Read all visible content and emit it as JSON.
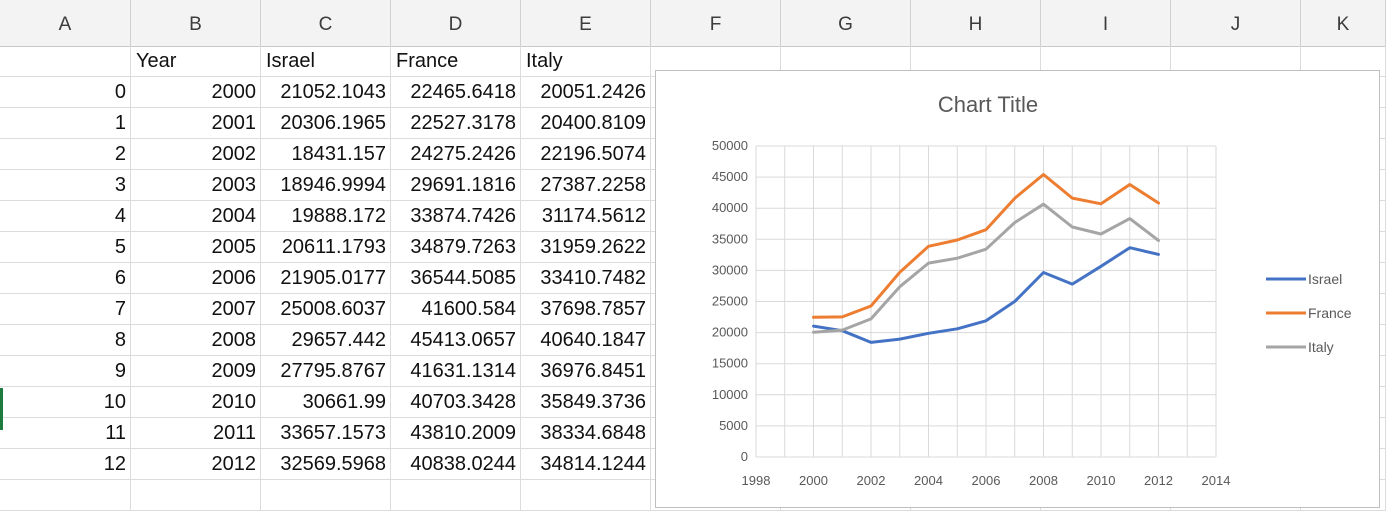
{
  "columns": [
    "A",
    "B",
    "C",
    "D",
    "E",
    "F",
    "G",
    "H",
    "I",
    "J",
    "K"
  ],
  "header_row": [
    "",
    "Year",
    "Israel",
    "France",
    "Italy"
  ],
  "rows": [
    [
      "0",
      "2000",
      "21052.1043",
      "22465.6418",
      "20051.2426"
    ],
    [
      "1",
      "2001",
      "20306.1965",
      "22527.3178",
      "20400.8109"
    ],
    [
      "2",
      "2002",
      "18431.157",
      "24275.2426",
      "22196.5074"
    ],
    [
      "3",
      "2003",
      "18946.9994",
      "29691.1816",
      "27387.2258"
    ],
    [
      "4",
      "2004",
      "19888.172",
      "33874.7426",
      "31174.5612"
    ],
    [
      "5",
      "2005",
      "20611.1793",
      "34879.7263",
      "31959.2622"
    ],
    [
      "6",
      "2006",
      "21905.0177",
      "36544.5085",
      "33410.7482"
    ],
    [
      "7",
      "2007",
      "25008.6037",
      "41600.584",
      "37698.7857"
    ],
    [
      "8",
      "2008",
      "29657.442",
      "45413.0657",
      "40640.1847"
    ],
    [
      "9",
      "2009",
      "27795.8767",
      "41631.1314",
      "36976.8451"
    ],
    [
      "10",
      "2010",
      "30661.99",
      "40703.3428",
      "35849.3736"
    ],
    [
      "11",
      "2011",
      "33657.1573",
      "43810.2009",
      "38334.6848"
    ],
    [
      "12",
      "2012",
      "32569.5968",
      "40838.0244",
      "34814.1244"
    ]
  ],
  "chart_data": {
    "type": "line",
    "title": "Chart Title",
    "x": [
      2000,
      2001,
      2002,
      2003,
      2004,
      2005,
      2006,
      2007,
      2008,
      2009,
      2010,
      2011,
      2012
    ],
    "xlim": [
      1998,
      2014
    ],
    "xticks": [
      "1998",
      "2000",
      "2002",
      "2004",
      "2006",
      "2008",
      "2010",
      "2012",
      "2014"
    ],
    "ylim": [
      0,
      50000
    ],
    "yticks": [
      "0",
      "5000",
      "10000",
      "15000",
      "20000",
      "25000",
      "30000",
      "35000",
      "40000",
      "45000",
      "50000"
    ],
    "grid": true,
    "legend_position": "right",
    "series": [
      {
        "name": "Israel",
        "color": "#4472c4",
        "values": [
          21052.1043,
          20306.1965,
          18431.157,
          18946.9994,
          19888.172,
          20611.1793,
          21905.0177,
          25008.6037,
          29657.442,
          27795.8767,
          30661.99,
          33657.1573,
          32569.5968
        ]
      },
      {
        "name": "France",
        "color": "#ed7d31",
        "values": [
          22465.6418,
          22527.3178,
          24275.2426,
          29691.1816,
          33874.7426,
          34879.7263,
          36544.5085,
          41600.584,
          45413.0657,
          41631.1314,
          40703.3428,
          43810.2009,
          40838.0244
        ]
      },
      {
        "name": "Italy",
        "color": "#a5a5a5",
        "values": [
          20051.2426,
          20400.8109,
          22196.5074,
          27387.2258,
          31174.5612,
          31959.2622,
          33410.7482,
          37698.7857,
          40640.1847,
          36976.8451,
          35849.3736,
          38334.6848,
          34814.1244
        ]
      }
    ]
  }
}
